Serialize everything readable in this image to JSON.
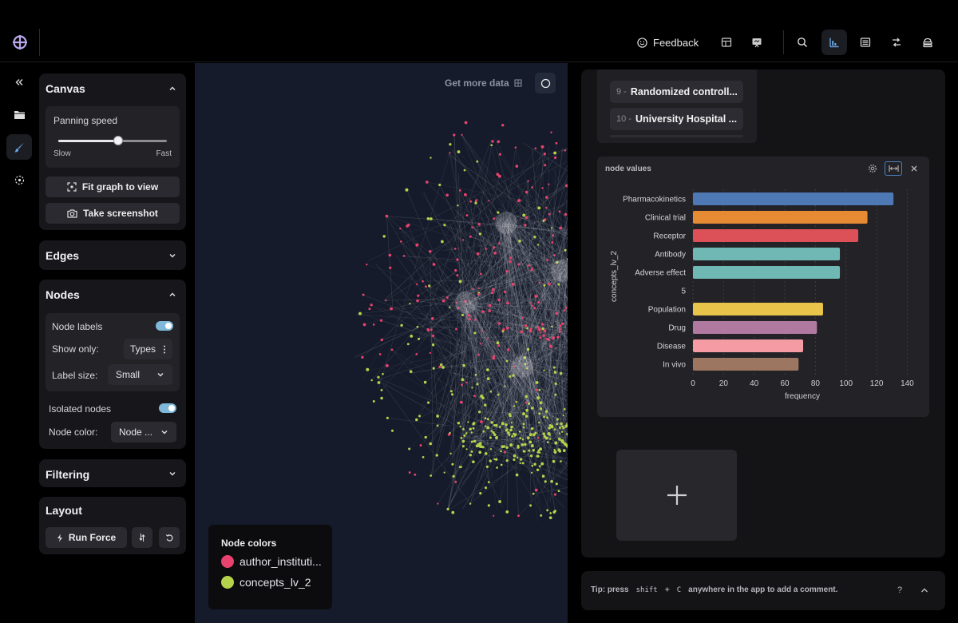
{
  "topbar": {
    "feedback_label": "Feedback",
    "icons": [
      "table-layout-icon",
      "presentation-icon",
      "search-icon",
      "bar-chart-icon",
      "list-view-icon",
      "shuffle-icon",
      "stack-icon"
    ]
  },
  "rail": {
    "items": [
      "collapse-icon",
      "folder-icon",
      "brush-icon",
      "select-nodes-icon"
    ],
    "active": "brush-icon"
  },
  "canvas_panel": {
    "title": "Canvas",
    "panning_speed_label": "Panning speed",
    "panning_speed_value": 0.55,
    "slow_label": "Slow",
    "fast_label": "Fast",
    "fit_label": "Fit graph to view",
    "screenshot_label": "Take screenshot"
  },
  "edges_panel": {
    "title": "Edges"
  },
  "nodes_panel": {
    "title": "Nodes",
    "node_labels": "Node labels",
    "show_only": "Show only:",
    "show_only_value": "Types",
    "label_size": "Label size:",
    "label_size_value": "Small",
    "isolated_nodes": "Isolated nodes",
    "node_color": "Node color:",
    "node_color_value": "Node ..."
  },
  "filtering_panel": {
    "title": "Filtering"
  },
  "layout_panel": {
    "title": "Layout",
    "run_force_label": "Run Force"
  },
  "graph": {
    "get_more_label": "Get more data",
    "legend": {
      "title": "Node colors",
      "items": [
        {
          "label": "author_instituti...",
          "color": "#e8436e"
        },
        {
          "label": "concepts_lv_2",
          "color": "#b6d34c"
        }
      ]
    }
  },
  "results_list": {
    "items": [
      {
        "num": "9 -",
        "label": "Randomized controll..."
      },
      {
        "num": "10 -",
        "label": "University Hospital ..."
      }
    ]
  },
  "chart_card": {
    "title": "node values"
  },
  "chart_data": {
    "type": "bar",
    "orientation": "horizontal",
    "categories": [
      "Pharmacokinetics",
      "Clinical trial",
      "Receptor",
      "Antibody",
      "Adverse effect",
      "5",
      "Population",
      "Drug",
      "Disease",
      "In vivo"
    ],
    "values": [
      131,
      114,
      108,
      96,
      96,
      null,
      85,
      81,
      72,
      69
    ],
    "colors": [
      "#4e79b4",
      "#e68a33",
      "#dc5058",
      "#6fb8b3",
      "#6fb8b3",
      null,
      "#e8c54a",
      "#b07aa0",
      "#f49ba3",
      "#9c7661"
    ],
    "xlabel": "frequency",
    "ylabel": "concepts_lv_2",
    "xticks": [
      0,
      20,
      40,
      60,
      80,
      100,
      120,
      140
    ],
    "xlim": [
      0,
      145
    ],
    "grid": "vertical"
  },
  "tipbar": {
    "tip_prefix": "Tip: press",
    "shortcut_1": "shift",
    "shortcut_plus": "+",
    "shortcut_2": "C",
    "tip_suffix": "anywhere in the app to add a comment.",
    "help_label": "?"
  }
}
